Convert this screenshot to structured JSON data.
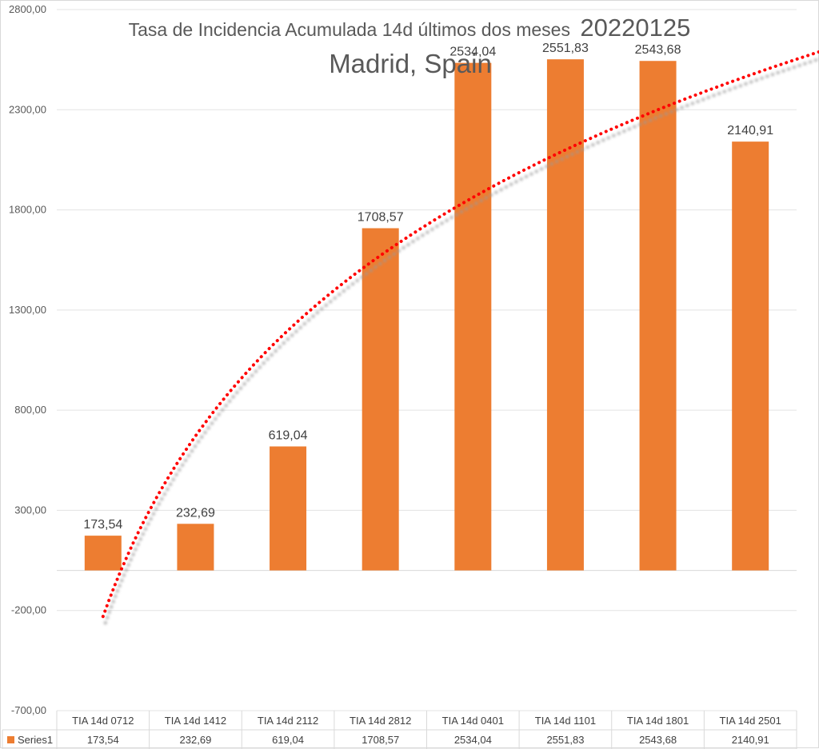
{
  "chart_data": {
    "type": "bar",
    "title_main": "Tasa de Incidencia Acumulada 14d últimos dos meses",
    "title_date": "20220125",
    "subtitle": "Madrid, Spain",
    "categories": [
      "TIA 14d 0712",
      "TIA 14d 1412",
      "TIA 14d 2112",
      "TIA 14d 2812",
      "TIA 14d 0401",
      "TIA 14d 1101",
      "TIA 14d 1801",
      "TIA 14d 2501"
    ],
    "series": [
      {
        "name": "Series1",
        "values": [
          173.54,
          232.69,
          619.04,
          1708.57,
          2534.04,
          2551.83,
          2543.68,
          2140.91
        ],
        "labels": [
          "173,54",
          "232,69",
          "619,04",
          "1708,57",
          "2534,04",
          "2551,83",
          "2543,68",
          "2140,91"
        ],
        "color": "#ed7d31"
      }
    ],
    "ylim": [
      -700,
      2800
    ],
    "yticks": [
      2800,
      2300,
      1800,
      1300,
      800,
      300,
      -200,
      -700
    ],
    "ytick_labels": [
      "2800,00",
      "2300,00",
      "1800,00",
      "1300,00",
      "800,00",
      "300,00",
      "-200,00",
      "-700,00"
    ],
    "trendline": {
      "type": "logarithmic",
      "style": "dotted",
      "color": "#ff0000",
      "start_value": -230,
      "end_value": 2590
    },
    "grid": true,
    "data_table": true,
    "legend": "data-table"
  }
}
